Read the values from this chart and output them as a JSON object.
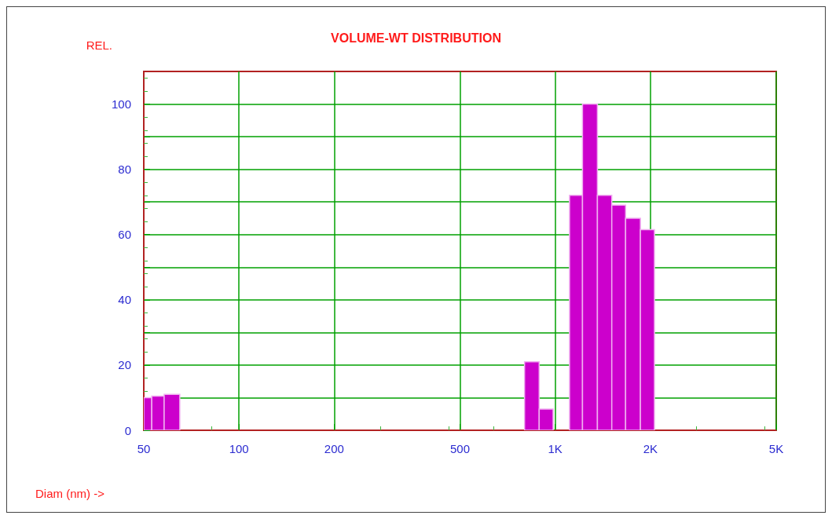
{
  "chart_data": {
    "type": "histogram",
    "title": "VOLUME-WT DISTRIBUTION",
    "ylabel": "REL.",
    "xlabel": "Diam (nm) ->",
    "bins": [
      50,
      53,
      58,
      65,
      800,
      890,
      985,
      1110,
      1220,
      1360,
      1510,
      1670,
      1860,
      2060
    ],
    "values": [
      10,
      10.5,
      11,
      0,
      21,
      6.5,
      0,
      72,
      100,
      72,
      69,
      65,
      61.5
    ],
    "color": "#cc00cc",
    "log": "x",
    "xlim": [
      50,
      5000
    ],
    "xticks": [
      50,
      100,
      200,
      500,
      {
        "value": 1000,
        "label": "1K"
      },
      {
        "value": 2000,
        "label": "2K"
      },
      {
        "value": 5000,
        "label": "5K"
      }
    ],
    "ylim": [
      0,
      110
    ],
    "yticks": [
      0,
      {
        "value": 10,
        "label": null
      },
      20,
      {
        "value": 30,
        "label": null
      },
      40,
      {
        "value": 50,
        "label": null
      },
      60,
      {
        "value": 70,
        "label": null
      },
      80,
      {
        "value": 90,
        "label": null
      },
      100
    ],
    "grid": true
  }
}
